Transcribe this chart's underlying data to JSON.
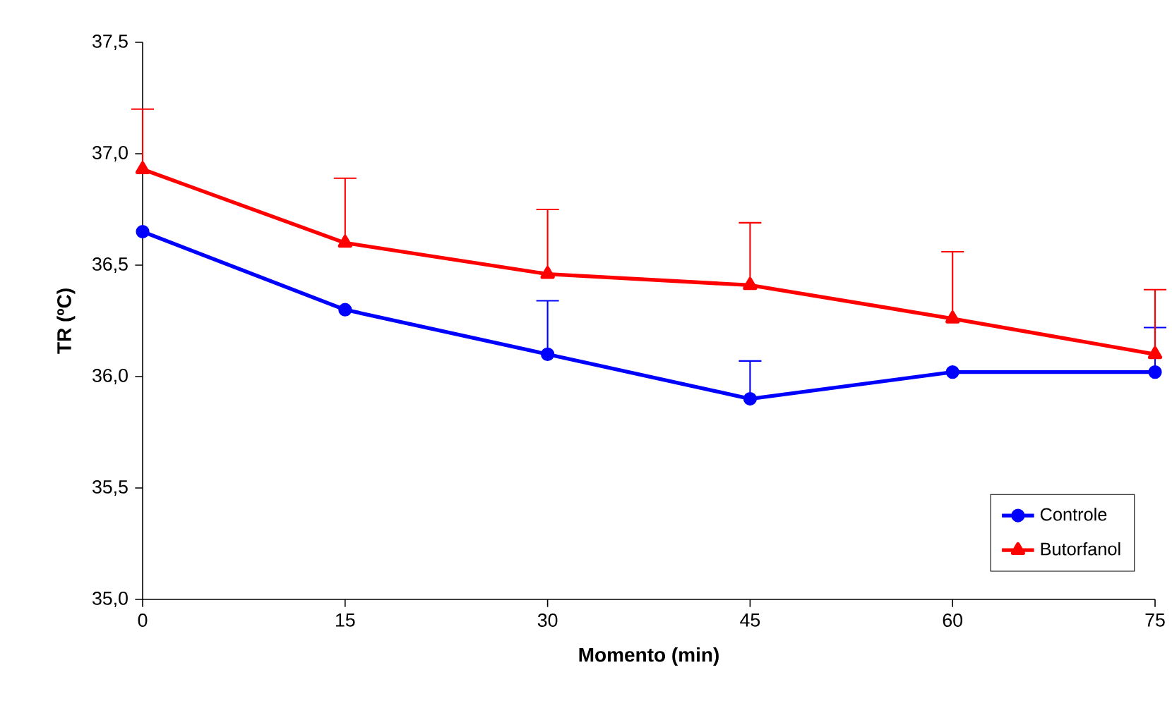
{
  "chart_data": {
    "type": "line",
    "xlabel": "Momento (min)",
    "ylabel": "TR (ºC)",
    "x": [
      0,
      15,
      30,
      45,
      60,
      75
    ],
    "xlim": [
      0,
      75
    ],
    "xticks": [
      0,
      15,
      30,
      45,
      60,
      75
    ],
    "ylim": [
      35.0,
      37.5
    ],
    "yticks": [
      {
        "value": 35.0,
        "label": "35,0"
      },
      {
        "value": 35.5,
        "label": "35,5"
      },
      {
        "value": 36.0,
        "label": "36,0"
      },
      {
        "value": 36.5,
        "label": "36,5"
      },
      {
        "value": 37.0,
        "label": "37,0"
      },
      {
        "value": 37.5,
        "label": "37,5"
      }
    ],
    "grid": false,
    "legend": "bottom right",
    "line_style": "solid",
    "series": [
      {
        "name": "Controle",
        "color": "#0000ff",
        "marker": "circle",
        "values": [
          36.65,
          36.3,
          36.1,
          35.9,
          36.02,
          36.02
        ],
        "errors": [
          null,
          null,
          [
            36.1,
            36.34
          ],
          [
            35.9,
            36.07
          ],
          null,
          [
            36.02,
            36.22
          ]
        ]
      },
      {
        "name": "Butorfanol",
        "color": "#ff0000",
        "marker": "triangle",
        "values": [
          36.93,
          36.6,
          36.46,
          36.41,
          36.26,
          36.1
        ],
        "errors": [
          [
            36.93,
            37.2
          ],
          [
            36.6,
            36.89
          ],
          [
            36.46,
            36.75
          ],
          [
            36.41,
            36.69
          ],
          [
            36.26,
            36.56
          ],
          [
            36.1,
            36.39
          ]
        ]
      }
    ]
  }
}
